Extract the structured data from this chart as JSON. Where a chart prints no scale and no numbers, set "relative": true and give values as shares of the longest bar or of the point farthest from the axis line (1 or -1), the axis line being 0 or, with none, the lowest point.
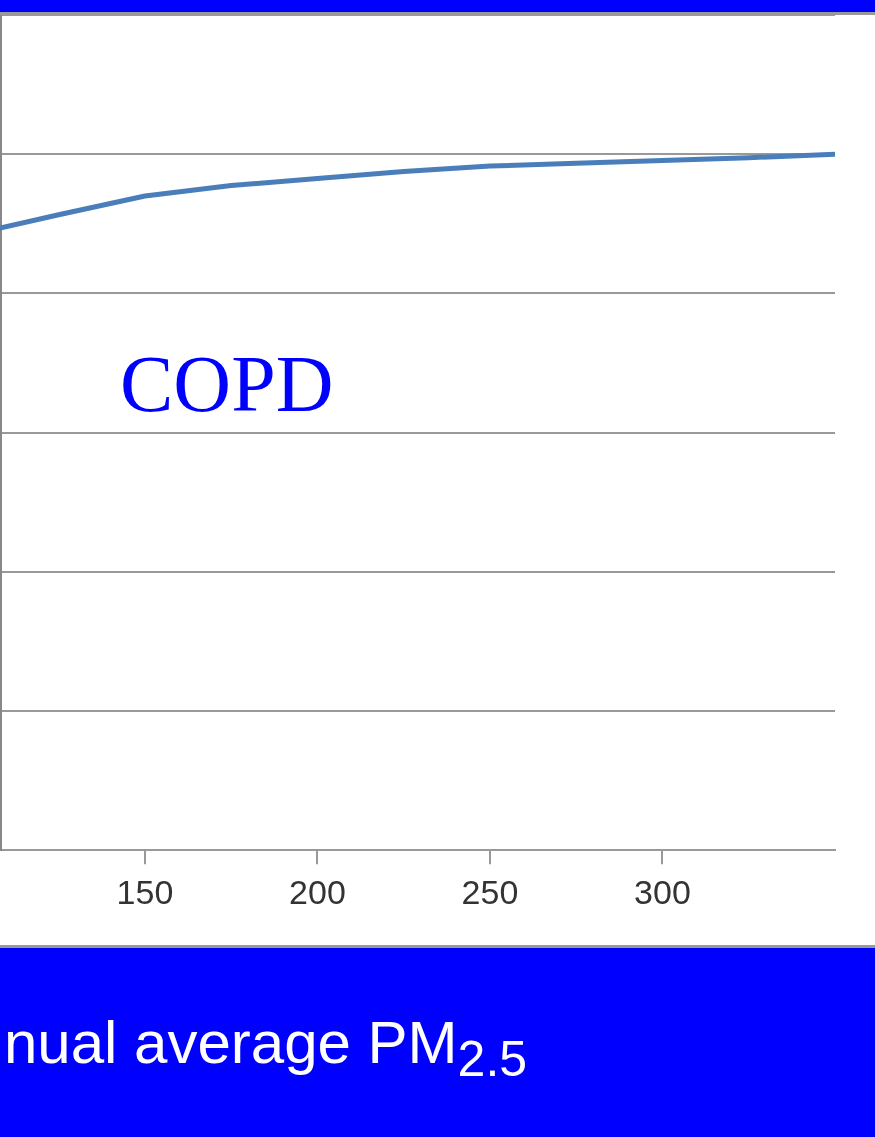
{
  "chart_data": {
    "type": "line",
    "xlabel": "nual average PM$_{2.5}$",
    "relative": true,
    "grid": "y",
    "xlim": [
      108,
      350
    ],
    "xticks": [
      150,
      200,
      250,
      300
    ],
    "annotations": [
      "COPD"
    ],
    "series": [
      {
        "color": "#4a7ebb",
        "x": [
          108,
          125,
          150,
          175,
          200,
          225,
          250,
          275,
          300,
          325,
          350
        ],
        "values": [
          0.894,
          0.913,
          0.94,
          0.955,
          0.965,
          0.975,
          0.983,
          0.987,
          0.991,
          0.995,
          1
        ]
      }
    ]
  }
}
